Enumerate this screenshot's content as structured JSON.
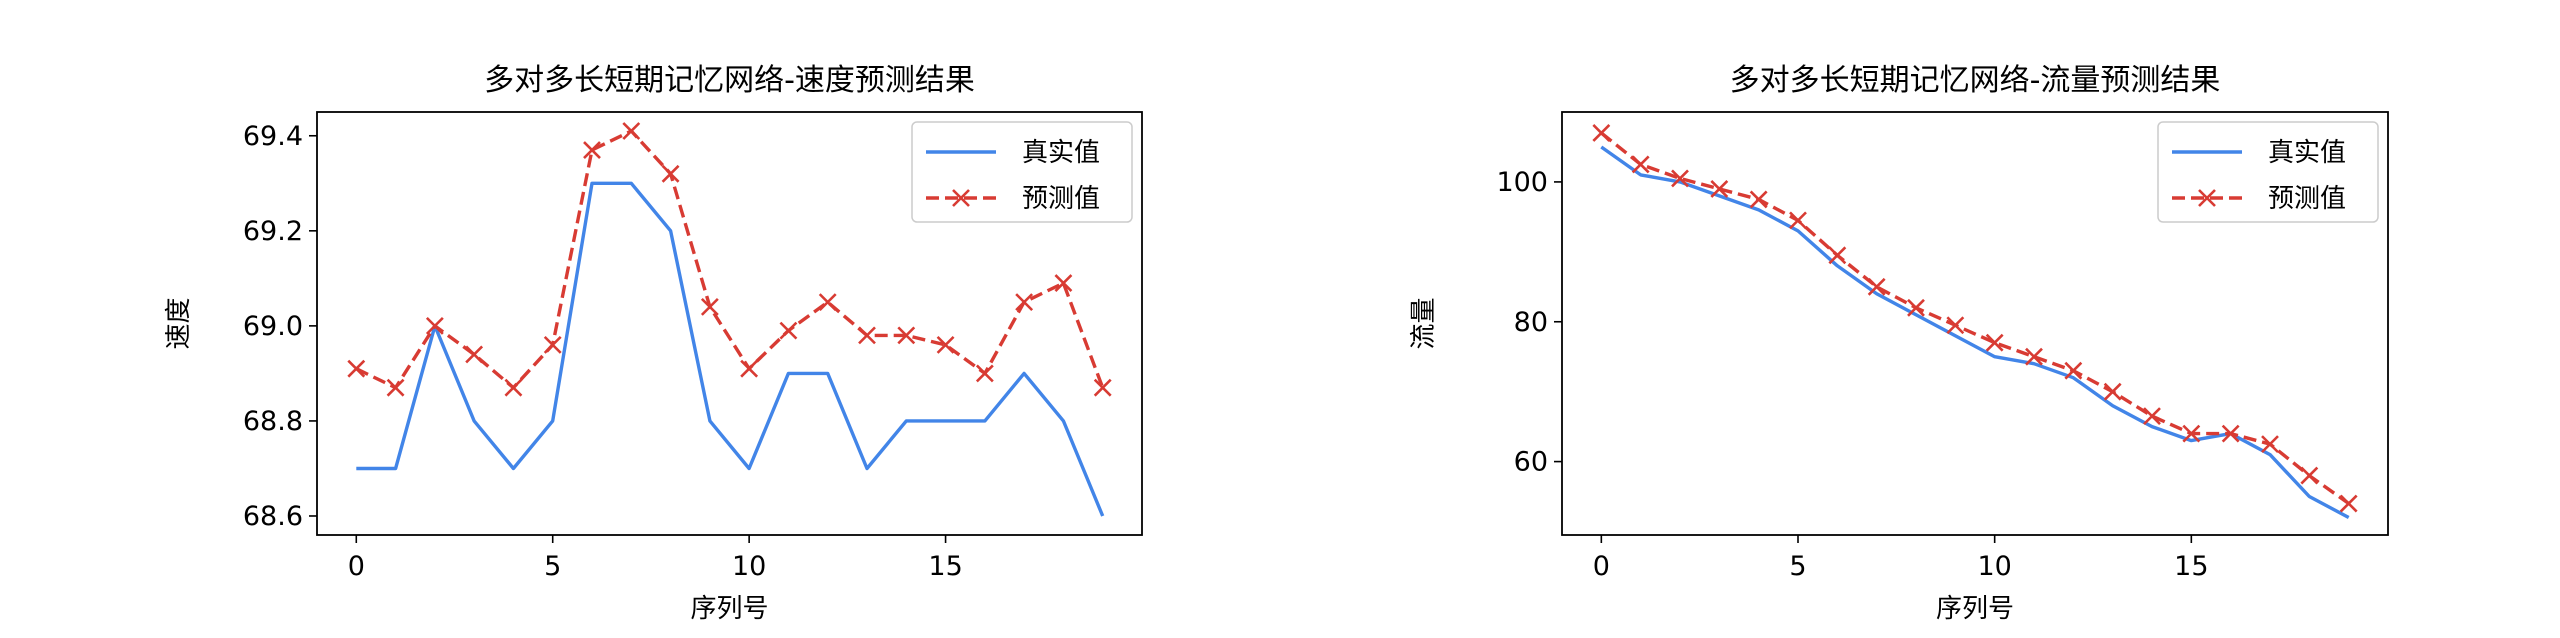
{
  "colors": {
    "true_series": "#4285e8",
    "pred_series": "#d83b33"
  },
  "chart_data": [
    {
      "type": "line",
      "title": "多对多长短期记忆网络-速度预测结果",
      "xlabel": "序列号",
      "ylabel": "速度",
      "xlim": [
        -1.0,
        20.0
      ],
      "ylim": [
        68.56,
        69.45
      ],
      "xticks": [
        0,
        5,
        10,
        15
      ],
      "yticks": [
        68.6,
        68.8,
        69.0,
        69.2,
        69.4
      ],
      "ytick_labels": [
        "68.6",
        "68.8",
        "69.0",
        "69.2",
        "69.4"
      ],
      "grid": false,
      "legend": "top-right",
      "x": [
        0,
        1,
        2,
        3,
        4,
        5,
        6,
        7,
        8,
        9,
        10,
        11,
        12,
        13,
        14,
        15,
        16,
        17,
        18,
        19
      ],
      "series": [
        {
          "name": "真实值",
          "style": "solid",
          "values": [
            68.7,
            68.7,
            69.0,
            68.8,
            68.7,
            68.8,
            69.3,
            69.3,
            69.2,
            68.8,
            68.7,
            68.9,
            68.9,
            68.7,
            68.8,
            68.8,
            68.8,
            68.9,
            68.8,
            68.6
          ]
        },
        {
          "name": "预测值",
          "style": "dashed-x",
          "values": [
            68.91,
            68.87,
            69.0,
            68.94,
            68.87,
            68.96,
            69.37,
            69.41,
            69.32,
            69.04,
            68.91,
            68.99,
            69.05,
            68.98,
            68.98,
            68.96,
            68.9,
            69.05,
            69.09,
            68.87
          ]
        }
      ]
    },
    {
      "type": "line",
      "title": "多对多长短期记忆网络-流量预测结果",
      "xlabel": "序列号",
      "ylabel": "流量",
      "xlim": [
        -1.0,
        20.0
      ],
      "ylim": [
        49.5,
        110.0
      ],
      "xticks": [
        0,
        5,
        10,
        15
      ],
      "yticks": [
        60,
        80,
        100
      ],
      "ytick_labels": [
        "60",
        "80",
        "100"
      ],
      "grid": false,
      "legend": "top-right",
      "x": [
        0,
        1,
        2,
        3,
        4,
        5,
        6,
        7,
        8,
        9,
        10,
        11,
        12,
        13,
        14,
        15,
        16,
        17,
        18,
        19
      ],
      "series": [
        {
          "name": "真实值",
          "style": "solid",
          "values": [
            105,
            101,
            100,
            98,
            96,
            93,
            88,
            84,
            81,
            78,
            75,
            74,
            72,
            68,
            65,
            63,
            64,
            61,
            55,
            52
          ]
        },
        {
          "name": "预测值",
          "style": "dashed-x",
          "values": [
            107,
            102.5,
            100.5,
            99,
            97.5,
            94.5,
            89.5,
            85,
            82,
            79.5,
            77,
            75,
            73,
            70,
            66.5,
            64,
            64,
            62.5,
            58,
            54
          ]
        }
      ]
    }
  ]
}
